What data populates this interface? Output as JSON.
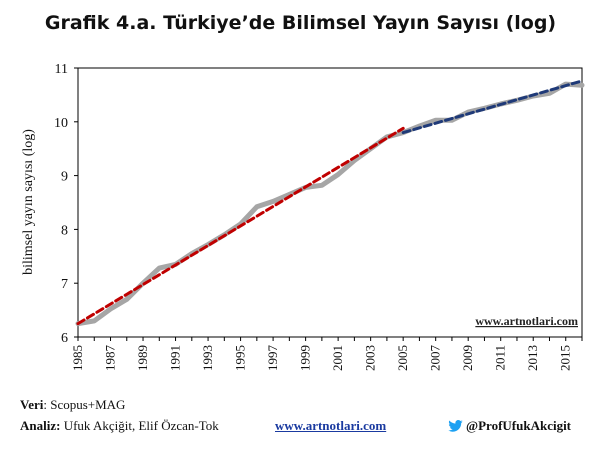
{
  "title": "Grafik 4.a. Türkiye’de Bilimsel Yayın Sayısı (log)",
  "watermark": "www.artnotlari.com",
  "footer": {
    "source_label": "Veri",
    "source_value": ": Scopus+MAG",
    "analysis_label": "Analiz:",
    "analysis_value": " Ufuk Akçiğit, Elif Özcan-Tok",
    "link": "www.artnotlari.com",
    "twitter": "@ProfUfukAkcigit"
  },
  "colors": {
    "actual": "#a6a6a6",
    "trend1": "#c00000",
    "trend2": "#1f3a78",
    "twitter": "#1da1f2"
  },
  "chart_data": {
    "type": "line",
    "ylabel": "bilimsel yayın sayısı (log)",
    "xlabel": "",
    "xlim": [
      1985,
      2016
    ],
    "ylim": [
      6,
      11
    ],
    "yticks": [
      6,
      7,
      8,
      9,
      10,
      11
    ],
    "xticks": [
      1985,
      1987,
      1989,
      1991,
      1993,
      1995,
      1997,
      1999,
      2001,
      2003,
      2005,
      2007,
      2009,
      2011,
      2013,
      2015
    ],
    "grid": false,
    "series": [
      {
        "style": "solid-gray",
        "x": [
          1985,
          1986,
          1987,
          1988,
          1989,
          1990,
          1991,
          1992,
          1993,
          1994,
          1995,
          1996,
          1997,
          1998,
          1999,
          2000,
          2001,
          2002,
          2003,
          2004,
          2005,
          2006,
          2007,
          2008,
          2009,
          2010,
          2011,
          2012,
          2013,
          2014,
          2015,
          2016
        ],
        "y": [
          6.25,
          6.3,
          6.52,
          6.7,
          7.0,
          7.28,
          7.35,
          7.55,
          7.72,
          7.9,
          8.1,
          8.42,
          8.52,
          8.65,
          8.78,
          8.82,
          9.02,
          9.28,
          9.5,
          9.72,
          9.8,
          9.92,
          10.03,
          10.03,
          10.18,
          10.25,
          10.33,
          10.4,
          10.48,
          10.53,
          10.7,
          10.68
        ]
      },
      {
        "style": "dashed-red",
        "x": [
          1985,
          2005
        ],
        "y": [
          6.25,
          9.88
        ]
      },
      {
        "style": "dashed-blue",
        "x": [
          2005,
          2016
        ],
        "y": [
          9.8,
          10.76
        ]
      }
    ]
  }
}
